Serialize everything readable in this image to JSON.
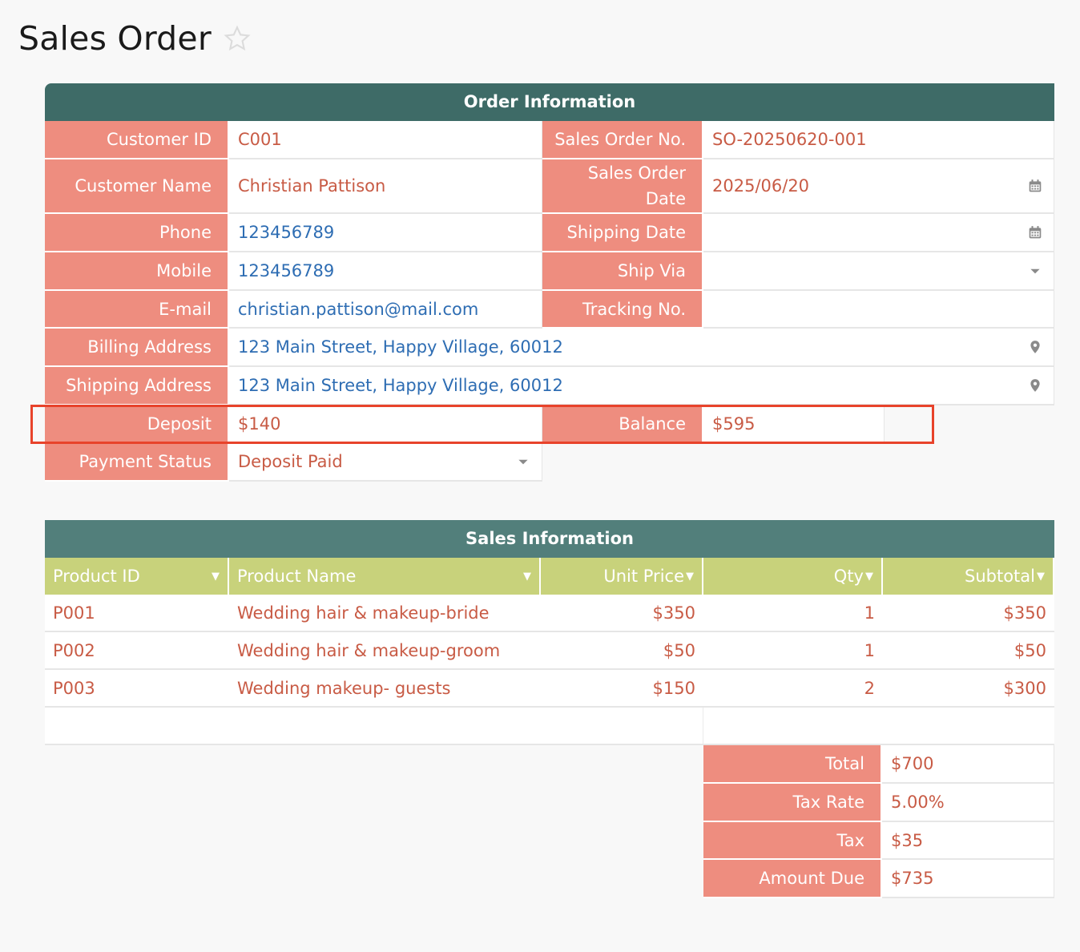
{
  "page": {
    "title": "Sales Order"
  },
  "order": {
    "band_title": "Order Information",
    "customer_id_label": "Customer ID",
    "customer_id": "C001",
    "so_no_label": "Sales Order No.",
    "so_no": "SO-20250620-001",
    "customer_name_label": "Customer Name",
    "customer_name": "Christian Pattison",
    "so_date_label": "Sales Order Date",
    "so_date": "2025/06/20",
    "phone_label": "Phone",
    "phone": "123456789",
    "shipping_date_label": "Shipping Date",
    "shipping_date": "",
    "mobile_label": "Mobile",
    "mobile": "123456789",
    "ship_via_label": "Ship Via",
    "ship_via": "",
    "email_label": "E-mail",
    "email": "christian.pattison@mail.com",
    "tracking_label": "Tracking No.",
    "tracking": "",
    "billing_label": "Billing Address",
    "billing": "123 Main Street, Happy Village, 60012",
    "shipping_addr_label": "Shipping Address",
    "shipping_addr": "123 Main Street, Happy Village, 60012",
    "deposit_label": "Deposit",
    "deposit": "$140",
    "balance_label": "Balance",
    "balance": "$595",
    "payment_status_label": "Payment Status",
    "payment_status": "Deposit Paid"
  },
  "sales": {
    "band_title": "Sales Information",
    "columns": [
      "Product ID",
      "Product Name",
      "Unit Price",
      "Qty",
      "Subtotal"
    ],
    "rows": [
      {
        "id": "P001",
        "name": "Wedding hair & makeup-bride",
        "price": "$350",
        "qty": "1",
        "subtotal": "$350"
      },
      {
        "id": "P002",
        "name": "Wedding hair & makeup-groom",
        "price": "$50",
        "qty": "1",
        "subtotal": "$50"
      },
      {
        "id": "P003",
        "name": "Wedding makeup- guests",
        "price": "$150",
        "qty": "2",
        "subtotal": "$300"
      }
    ]
  },
  "totals": {
    "total_label": "Total",
    "total": "$700",
    "tax_rate_label": "Tax Rate",
    "tax_rate": "5.00%",
    "tax_label": "Tax",
    "tax": "$35",
    "amount_due_label": "Amount Due",
    "amount_due": "$735"
  },
  "icons": {
    "calendar": "calendar-icon",
    "location": "location-pin-icon",
    "dropdown": "dropdown-caret-icon",
    "favorite": "star-icon"
  },
  "colors": {
    "header_band": "#3e6b67",
    "label_bg": "#ee8d7f",
    "column_header_bg": "#c8d27b",
    "value_text": "#c85b45",
    "link_text": "#2e6db3",
    "highlight_border": "#e8432b"
  }
}
